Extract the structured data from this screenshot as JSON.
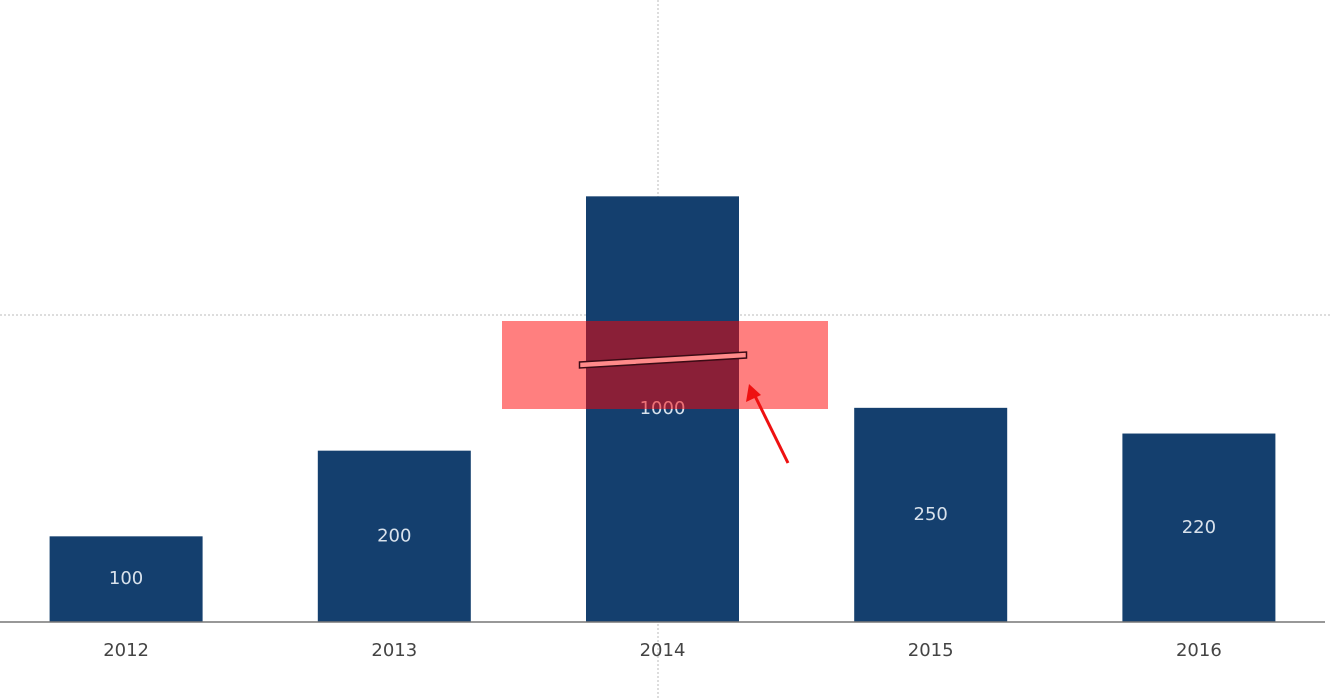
{
  "chart_data": {
    "type": "bar",
    "categories": [
      "2012",
      "2013",
      "2014",
      "2015",
      "2016"
    ],
    "values": [
      100,
      200,
      1000,
      250,
      220
    ],
    "color": "#143f6e",
    "ylim": [
      0,
      1100
    ],
    "axis_break": [
      300,
      800
    ],
    "value_labels_inside": true
  }
}
